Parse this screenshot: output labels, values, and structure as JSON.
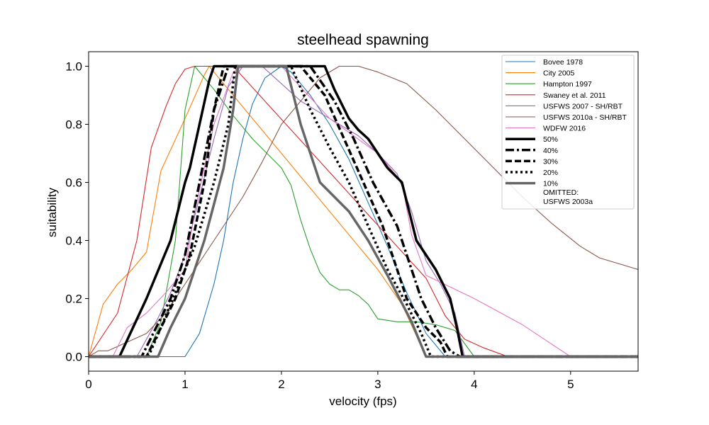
{
  "chart_data": {
    "type": "line",
    "title": "steelhead spawning",
    "xlabel": "velocity (fps)",
    "ylabel": "suitability",
    "xlim": [
      0,
      5.7
    ],
    "ylim": [
      -0.05,
      1.05
    ],
    "x_ticks": [
      "0",
      "1",
      "2",
      "3",
      "4",
      "5"
    ],
    "y_ticks": [
      "0.0",
      "0.2",
      "0.4",
      "0.6",
      "0.8",
      "1.0"
    ],
    "grid": false,
    "legend_position": "top-right",
    "legend_note_line1": "OMITTED:",
    "legend_note_line2": "USFWS 2003a",
    "series": [
      {
        "name": "Bovee 1978",
        "color": "#1f77b4",
        "style": "thin",
        "x": [
          0,
          1.0,
          1.15,
          1.3,
          1.4,
          1.5,
          1.6,
          1.7,
          1.83,
          2.0,
          2.1,
          2.3,
          2.5,
          2.7,
          2.9,
          3.1,
          3.3,
          3.5,
          3.7,
          5.7
        ],
        "y": [
          0,
          0,
          0.08,
          0.25,
          0.4,
          0.6,
          0.75,
          0.87,
          0.96,
          1.0,
          0.98,
          0.9,
          0.8,
          0.68,
          0.53,
          0.38,
          0.22,
          0.08,
          0,
          0
        ]
      },
      {
        "name": "City 2005",
        "color": "#ff7f0e",
        "style": "thin",
        "x": [
          0,
          0.15,
          0.3,
          0.45,
          0.6,
          0.75,
          1.0,
          1.2,
          1.25,
          1.5,
          2.0,
          2.5,
          3.0,
          3.25,
          3.5,
          5.7
        ],
        "y": [
          0,
          0.18,
          0.25,
          0.3,
          0.36,
          0.64,
          0.82,
          0.97,
          1.0,
          0.9,
          0.7,
          0.5,
          0.3,
          0.18,
          0,
          0
        ]
      },
      {
        "name": "Hampton 1997",
        "color": "#2ca02c",
        "style": "thin",
        "x": [
          0,
          0.6,
          0.75,
          0.9,
          1.0,
          1.1,
          1.3,
          1.5,
          1.7,
          2.0,
          2.1,
          2.2,
          2.3,
          2.4,
          2.5,
          2.6,
          2.7,
          2.8,
          2.9,
          3.0,
          3.2,
          3.4,
          3.6,
          3.8,
          4.0,
          5.7
        ],
        "y": [
          0,
          0,
          0.12,
          0.4,
          0.85,
          1.0,
          0.92,
          0.83,
          0.75,
          0.65,
          0.59,
          0.47,
          0.37,
          0.29,
          0.25,
          0.23,
          0.23,
          0.21,
          0.18,
          0.13,
          0.12,
          0.12,
          0.11,
          0.09,
          0,
          0
        ]
      },
      {
        "name": "Swaney et al. 2011",
        "color": "#d62728",
        "style": "thin",
        "x": [
          0,
          0.1,
          0.3,
          0.5,
          0.65,
          0.8,
          0.9,
          1.0,
          1.1,
          1.3,
          1.5,
          3.5,
          3.7,
          3.9,
          4.1,
          4.35,
          5.7
        ],
        "y": [
          0,
          0.05,
          0.15,
          0.4,
          0.72,
          0.86,
          0.94,
          0.99,
          1.0,
          1.0,
          1.0,
          0.27,
          0.14,
          0.06,
          0.03,
          0,
          0
        ]
      },
      {
        "name": "USFWS 2007 - SH/RBT",
        "color": "#9467bd",
        "style": "thin",
        "x": [
          0,
          0.5,
          0.7,
          0.85,
          1.0,
          1.15,
          1.3,
          1.45,
          1.6,
          1.8,
          2.0,
          2.2,
          2.5,
          2.8,
          3.0,
          3.2,
          3.35,
          3.5,
          3.65,
          3.8,
          3.9,
          5.7
        ],
        "y": [
          0,
          0,
          0.12,
          0.22,
          0.35,
          0.55,
          0.75,
          0.93,
          1.0,
          1.0,
          0.94,
          0.88,
          0.82,
          0.76,
          0.7,
          0.63,
          0.5,
          0.33,
          0.25,
          0.15,
          0,
          0
        ]
      },
      {
        "name": "USFWS 2010a - SH/RBT",
        "color": "#8c564b",
        "style": "thin",
        "x": [
          0,
          0.1,
          0.2,
          0.4,
          0.6,
          0.8,
          1.0,
          1.2,
          1.4,
          1.6,
          1.8,
          2.0,
          2.2,
          2.4,
          2.6,
          2.8,
          3.0,
          3.3,
          3.6,
          3.9,
          4.2,
          4.5,
          4.8,
          5.1,
          5.3,
          5.7
        ],
        "y": [
          0,
          0.02,
          0.02,
          0.05,
          0.08,
          0.15,
          0.25,
          0.35,
          0.45,
          0.55,
          0.67,
          0.8,
          0.88,
          0.96,
          1.0,
          1.0,
          0.98,
          0.94,
          0.85,
          0.75,
          0.65,
          0.55,
          0.46,
          0.38,
          0.34,
          0.3
        ]
      },
      {
        "name": "WDFW 2016",
        "color": "#e377c2",
        "style": "thin",
        "x": [
          0,
          0.25,
          0.4,
          0.6,
          0.8,
          1.0,
          1.1,
          1.3,
          1.5,
          1.6,
          2.0,
          2.5,
          3.0,
          3.25,
          3.35,
          3.5,
          4.0,
          4.5,
          5.0,
          5.7
        ],
        "y": [
          0,
          0,
          0.1,
          0.15,
          0.22,
          0.3,
          0.5,
          0.8,
          0.98,
          1.0,
          1.0,
          0.82,
          0.7,
          0.6,
          0.42,
          0.28,
          0.2,
          0.11,
          0,
          0
        ]
      },
      {
        "name": "50%",
        "color": "#000000",
        "style": "solid",
        "x": [
          0,
          0.32,
          0.6,
          0.85,
          1.0,
          1.05,
          1.15,
          1.25,
          1.3,
          2.45,
          2.55,
          2.7,
          2.8,
          2.9,
          3.0,
          3.1,
          3.25,
          3.4,
          3.6,
          3.75,
          3.82,
          3.88,
          5.7
        ],
        "y": [
          0,
          0,
          0.2,
          0.4,
          0.6,
          0.65,
          0.8,
          0.95,
          1.0,
          1.0,
          0.92,
          0.82,
          0.78,
          0.75,
          0.7,
          0.65,
          0.6,
          0.4,
          0.3,
          0.2,
          0.1,
          0,
          0
        ]
      },
      {
        "name": "40%",
        "color": "#000000",
        "style": "dashdot",
        "x": [
          0,
          0.55,
          0.7,
          0.85,
          1.0,
          1.15,
          1.3,
          1.45,
          2.3,
          2.55,
          2.75,
          2.95,
          3.2,
          3.45,
          3.6,
          3.75,
          3.85,
          5.7
        ],
        "y": [
          0,
          0,
          0.1,
          0.2,
          0.35,
          0.6,
          0.85,
          1.0,
          1.0,
          0.88,
          0.75,
          0.6,
          0.45,
          0.2,
          0.1,
          0.02,
          0,
          0
        ]
      },
      {
        "name": "30%",
        "color": "#000000",
        "style": "dashed",
        "x": [
          0,
          0.6,
          0.75,
          0.9,
          1.05,
          1.2,
          1.3,
          1.4,
          2.2,
          2.45,
          2.65,
          2.85,
          3.05,
          3.3,
          3.5,
          3.65,
          3.72,
          5.7
        ],
        "y": [
          0,
          0,
          0.1,
          0.2,
          0.35,
          0.6,
          0.85,
          1.0,
          1.0,
          0.9,
          0.75,
          0.6,
          0.45,
          0.2,
          0.1,
          0.05,
          0,
          0
        ]
      },
      {
        "name": "20%",
        "color": "#000000",
        "style": "dotted",
        "x": [
          0,
          0.62,
          0.75,
          0.9,
          1.1,
          1.3,
          1.45,
          1.52,
          2.1,
          2.3,
          2.5,
          2.7,
          2.9,
          3.1,
          3.3,
          3.45,
          3.55,
          5.7
        ],
        "y": [
          0,
          0,
          0.1,
          0.22,
          0.38,
          0.6,
          0.8,
          1.0,
          1.0,
          0.85,
          0.72,
          0.6,
          0.45,
          0.3,
          0.18,
          0.08,
          0,
          0
        ]
      },
      {
        "name": "10%",
        "color": "#666666",
        "style": "gray",
        "x": [
          0,
          0.72,
          0.85,
          1.0,
          1.2,
          1.4,
          1.5,
          1.55,
          2.05,
          2.2,
          2.4,
          2.7,
          2.9,
          3.1,
          3.35,
          3.5,
          5.7
        ],
        "y": [
          0,
          0,
          0.1,
          0.2,
          0.4,
          0.65,
          0.85,
          1.0,
          1.0,
          0.8,
          0.6,
          0.5,
          0.4,
          0.28,
          0.12,
          0,
          0
        ]
      }
    ]
  }
}
